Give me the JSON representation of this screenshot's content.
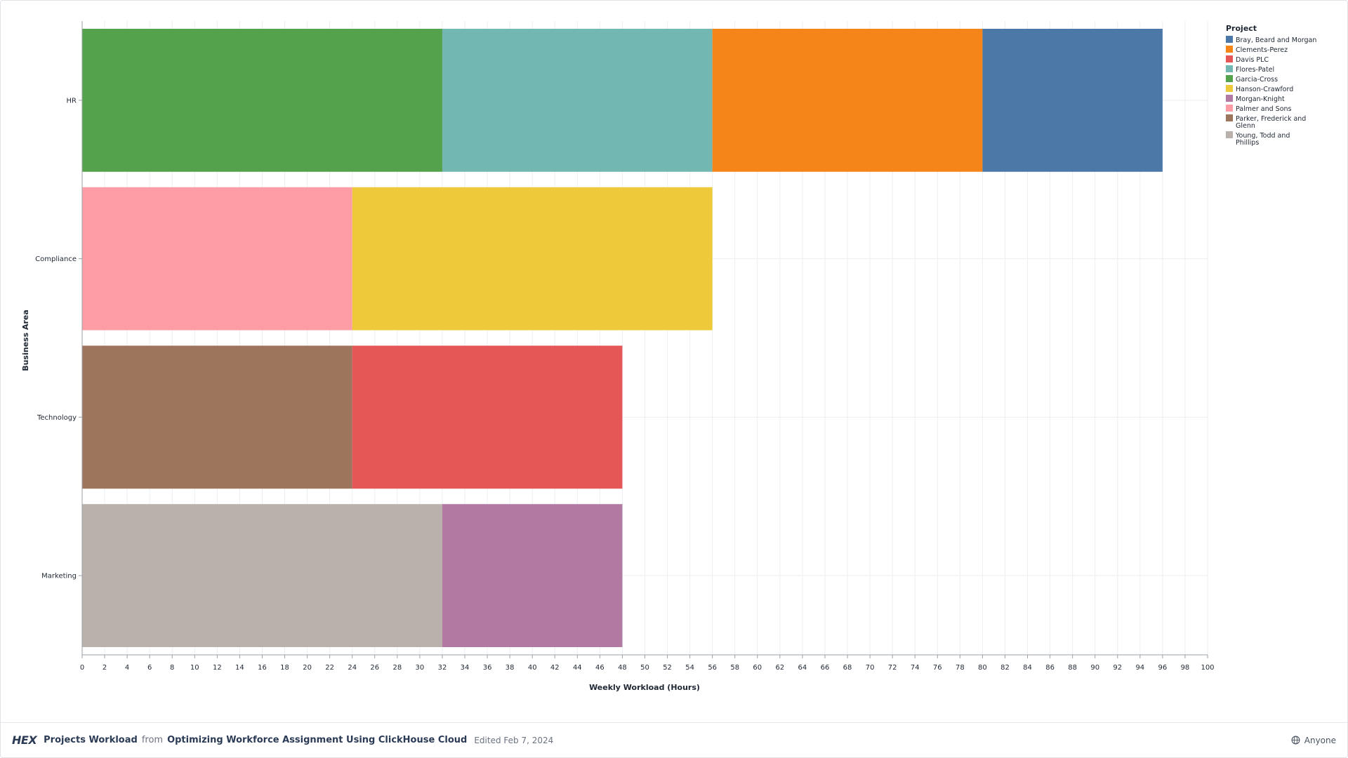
{
  "footer": {
    "logo": "HEX",
    "title": "Projects Workload",
    "from": "from",
    "app_name": "Optimizing Workforce Assignment Using ClickHouse Cloud",
    "edited": "Edited Feb 7, 2024",
    "share": "Anyone",
    "share_icon": "globe-icon"
  },
  "chart_data": {
    "type": "bar",
    "orientation": "horizontal",
    "stacked": true,
    "xlabel": "Weekly Workload (Hours)",
    "ylabel": "Business Area",
    "xlim": [
      0,
      100
    ],
    "x_tick_step": 2,
    "grid": true,
    "legend_title": "Project",
    "legend_position": "right",
    "categories": [
      "HR",
      "Compliance",
      "Technology",
      "Marketing"
    ],
    "legend": [
      {
        "name": "Bray, Beard and Morgan",
        "color": "#4c78a8"
      },
      {
        "name": "Clements-Perez",
        "color": "#f58518"
      },
      {
        "name": "Davis PLC",
        "color": "#e45756"
      },
      {
        "name": "Flores-Patel",
        "color": "#72b7b2"
      },
      {
        "name": "Garcia-Cross",
        "color": "#54a24b"
      },
      {
        "name": "Hanson-Crawford",
        "color": "#eeca3b"
      },
      {
        "name": "Morgan-Knight",
        "color": "#b279a2"
      },
      {
        "name": "Palmer and Sons",
        "color": "#ff9da6"
      },
      {
        "name": "Parker, Frederick and Glenn",
        "color": "#9d755d"
      },
      {
        "name": "Young, Todd and Phillips",
        "color": "#bab0ac"
      }
    ],
    "segments": [
      {
        "category": "HR",
        "project": "Garcia-Cross",
        "value": 32
      },
      {
        "category": "HR",
        "project": "Flores-Patel",
        "value": 24
      },
      {
        "category": "HR",
        "project": "Clements-Perez",
        "value": 24
      },
      {
        "category": "HR",
        "project": "Bray, Beard and Morgan",
        "value": 16
      },
      {
        "category": "Compliance",
        "project": "Palmer and Sons",
        "value": 24
      },
      {
        "category": "Compliance",
        "project": "Hanson-Crawford",
        "value": 32
      },
      {
        "category": "Technology",
        "project": "Parker, Frederick and Glenn",
        "value": 24
      },
      {
        "category": "Technology",
        "project": "Davis PLC",
        "value": 24
      },
      {
        "category": "Marketing",
        "project": "Young, Todd and Phillips",
        "value": 32
      },
      {
        "category": "Marketing",
        "project": "Morgan-Knight",
        "value": 16
      }
    ]
  }
}
